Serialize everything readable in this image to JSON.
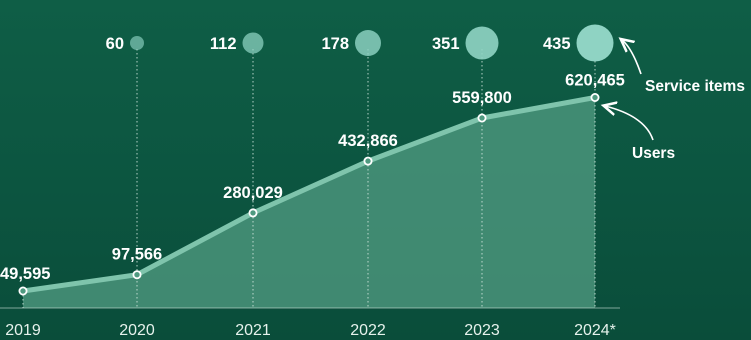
{
  "colors": {
    "background": "#0e5a43",
    "area_fill": "#4f9a80",
    "line": "#7fc4ac",
    "bubble": "#8fd3c3",
    "text": "#ffffff"
  },
  "chart_data": {
    "type": "area",
    "categories": [
      "2019",
      "2020",
      "2021",
      "2022",
      "2023",
      "2024*"
    ],
    "series": [
      {
        "name": "Users",
        "values": [
          49595,
          97566,
          280029,
          432866,
          559800,
          620465
        ],
        "labels": [
          "49,595",
          "97,566",
          "280,029",
          "432,866",
          "559,800",
          "620,465"
        ]
      },
      {
        "name": "Service items",
        "values": [
          null,
          60,
          112,
          178,
          351,
          435
        ],
        "labels": [
          "",
          "60",
          "112",
          "178",
          "351",
          "435"
        ]
      }
    ],
    "annotations": [
      "Service items",
      "Users"
    ]
  }
}
